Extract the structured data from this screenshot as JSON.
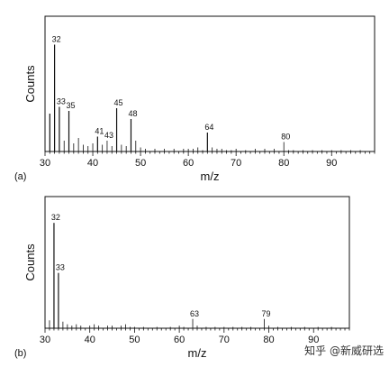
{
  "chart_data": [
    {
      "type": "bar",
      "panel_label": "(a)",
      "xlabel": "m/z",
      "ylabel": "Counts",
      "xlim": [
        30,
        99
      ],
      "ylim": [
        0,
        1
      ],
      "x_ticks": [
        30,
        40,
        50,
        60,
        70,
        80,
        90
      ],
      "grid": false,
      "peaks": [
        {
          "x": 31,
          "y": 0.28,
          "label": ""
        },
        {
          "x": 32,
          "y": 0.79,
          "label": "32"
        },
        {
          "x": 33,
          "y": 0.33,
          "label": "33"
        },
        {
          "x": 34,
          "y": 0.08,
          "label": ""
        },
        {
          "x": 35,
          "y": 0.3,
          "label": "35"
        },
        {
          "x": 36,
          "y": 0.06,
          "label": ""
        },
        {
          "x": 37,
          "y": 0.1,
          "label": ""
        },
        {
          "x": 38,
          "y": 0.05,
          "label": ""
        },
        {
          "x": 39,
          "y": 0.04,
          "label": ""
        },
        {
          "x": 40,
          "y": 0.06,
          "label": ""
        },
        {
          "x": 41,
          "y": 0.11,
          "label": "41"
        },
        {
          "x": 42,
          "y": 0.05,
          "label": ""
        },
        {
          "x": 43,
          "y": 0.08,
          "label": "43"
        },
        {
          "x": 44,
          "y": 0.04,
          "label": ""
        },
        {
          "x": 45,
          "y": 0.32,
          "label": "45"
        },
        {
          "x": 46,
          "y": 0.05,
          "label": ""
        },
        {
          "x": 47,
          "y": 0.04,
          "label": ""
        },
        {
          "x": 48,
          "y": 0.24,
          "label": "48"
        },
        {
          "x": 49,
          "y": 0.08,
          "label": ""
        },
        {
          "x": 50,
          "y": 0.03,
          "label": ""
        },
        {
          "x": 51,
          "y": 0.02,
          "label": ""
        },
        {
          "x": 53,
          "y": 0.02,
          "label": ""
        },
        {
          "x": 55,
          "y": 0.02,
          "label": ""
        },
        {
          "x": 57,
          "y": 0.02,
          "label": ""
        },
        {
          "x": 59,
          "y": 0.02,
          "label": ""
        },
        {
          "x": 60,
          "y": 0.02,
          "label": ""
        },
        {
          "x": 61,
          "y": 0.02,
          "label": ""
        },
        {
          "x": 62,
          "y": 0.03,
          "label": ""
        },
        {
          "x": 63,
          "y": 0.01,
          "label": ""
        },
        {
          "x": 64,
          "y": 0.14,
          "label": "64"
        },
        {
          "x": 65,
          "y": 0.03,
          "label": ""
        },
        {
          "x": 66,
          "y": 0.02,
          "label": ""
        },
        {
          "x": 67,
          "y": 0.02,
          "label": ""
        },
        {
          "x": 68,
          "y": 0.01,
          "label": ""
        },
        {
          "x": 69,
          "y": 0.01,
          "label": ""
        },
        {
          "x": 70,
          "y": 0.02,
          "label": ""
        },
        {
          "x": 72,
          "y": 0.01,
          "label": ""
        },
        {
          "x": 74,
          "y": 0.02,
          "label": ""
        },
        {
          "x": 76,
          "y": 0.02,
          "label": ""
        },
        {
          "x": 78,
          "y": 0.02,
          "label": ""
        },
        {
          "x": 80,
          "y": 0.07,
          "label": "80"
        },
        {
          "x": 81,
          "y": 0.01,
          "label": ""
        },
        {
          "x": 82,
          "y": 0.01,
          "label": ""
        },
        {
          "x": 84,
          "y": 0.01,
          "label": ""
        },
        {
          "x": 86,
          "y": 0.01,
          "label": ""
        },
        {
          "x": 88,
          "y": 0.01,
          "label": ""
        },
        {
          "x": 90,
          "y": 0.01,
          "label": ""
        },
        {
          "x": 92,
          "y": 0.01,
          "label": ""
        },
        {
          "x": 94,
          "y": 0.01,
          "label": ""
        },
        {
          "x": 96,
          "y": 0.01,
          "label": ""
        }
      ]
    },
    {
      "type": "bar",
      "panel_label": "(b)",
      "xlabel": "m/z",
      "ylabel": "Counts",
      "xlim": [
        30,
        98
      ],
      "ylim": [
        0,
        1
      ],
      "x_ticks": [
        30,
        40,
        50,
        60,
        70,
        80,
        90
      ],
      "grid": false,
      "peaks": [
        {
          "x": 31,
          "y": 0.06,
          "label": ""
        },
        {
          "x": 32,
          "y": 0.8,
          "label": "32"
        },
        {
          "x": 33,
          "y": 0.42,
          "label": "33"
        },
        {
          "x": 34,
          "y": 0.05,
          "label": ""
        },
        {
          "x": 35,
          "y": 0.03,
          "label": ""
        },
        {
          "x": 36,
          "y": 0.02,
          "label": ""
        },
        {
          "x": 37,
          "y": 0.03,
          "label": ""
        },
        {
          "x": 38,
          "y": 0.02,
          "label": ""
        },
        {
          "x": 40,
          "y": 0.02,
          "label": ""
        },
        {
          "x": 41,
          "y": 0.03,
          "label": ""
        },
        {
          "x": 42,
          "y": 0.02,
          "label": ""
        },
        {
          "x": 44,
          "y": 0.02,
          "label": ""
        },
        {
          "x": 45,
          "y": 0.02,
          "label": ""
        },
        {
          "x": 47,
          "y": 0.02,
          "label": ""
        },
        {
          "x": 48,
          "y": 0.03,
          "label": ""
        },
        {
          "x": 49,
          "y": 0.01,
          "label": ""
        },
        {
          "x": 50,
          "y": 0.01,
          "label": ""
        },
        {
          "x": 52,
          "y": 0.01,
          "label": ""
        },
        {
          "x": 55,
          "y": 0.01,
          "label": ""
        },
        {
          "x": 58,
          "y": 0.01,
          "label": ""
        },
        {
          "x": 60,
          "y": 0.02,
          "label": ""
        },
        {
          "x": 61,
          "y": 0.01,
          "label": ""
        },
        {
          "x": 63,
          "y": 0.07,
          "label": "63"
        },
        {
          "x": 64,
          "y": 0.02,
          "label": ""
        },
        {
          "x": 66,
          "y": 0.01,
          "label": ""
        },
        {
          "x": 68,
          "y": 0.01,
          "label": ""
        },
        {
          "x": 70,
          "y": 0.01,
          "label": ""
        },
        {
          "x": 72,
          "y": 0.01,
          "label": ""
        },
        {
          "x": 74,
          "y": 0.01,
          "label": ""
        },
        {
          "x": 76,
          "y": 0.01,
          "label": ""
        },
        {
          "x": 79,
          "y": 0.07,
          "label": "79"
        },
        {
          "x": 80,
          "y": 0.02,
          "label": ""
        },
        {
          "x": 82,
          "y": 0.01,
          "label": ""
        },
        {
          "x": 85,
          "y": 0.01,
          "label": ""
        },
        {
          "x": 88,
          "y": 0.01,
          "label": ""
        },
        {
          "x": 91,
          "y": 0.01,
          "label": ""
        },
        {
          "x": 94,
          "y": 0.01,
          "label": ""
        }
      ]
    }
  ],
  "watermark": {
    "text": "知乎 @新威研选"
  },
  "colors": {
    "line": "#111111",
    "background": "#ffffff"
  }
}
